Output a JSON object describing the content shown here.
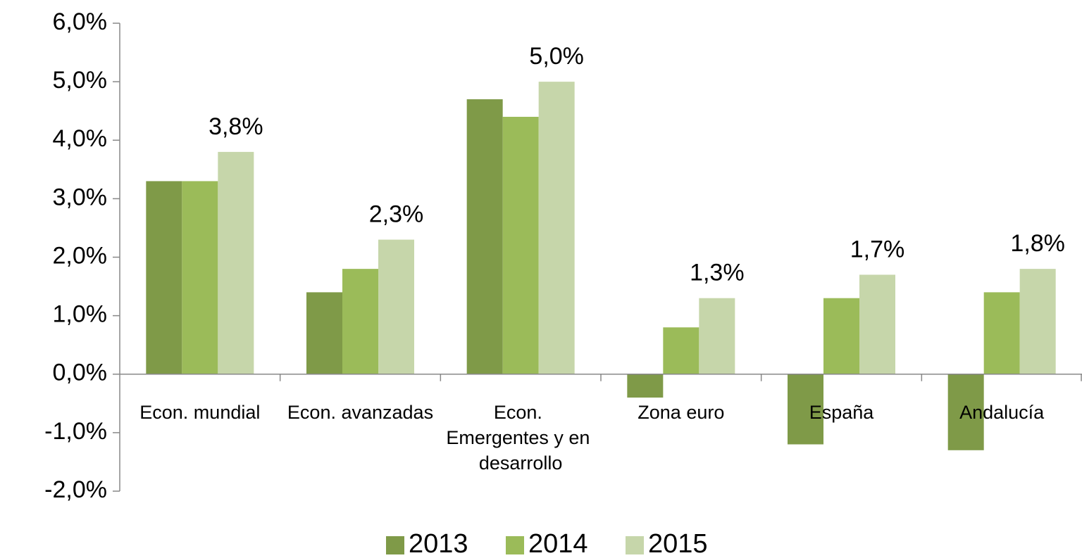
{
  "chart_data": {
    "type": "bar",
    "categories": [
      "Econ. mundial",
      "Econ. avanzadas",
      "Econ. Emergentes y en desarrollo",
      "Zona euro",
      "España",
      "Andalucía"
    ],
    "series": [
      {
        "name": "2013",
        "color": "#7f9a48",
        "values": [
          3.3,
          1.4,
          4.7,
          -0.4,
          -1.2,
          -1.3
        ]
      },
      {
        "name": "2014",
        "color": "#9bbb59",
        "values": [
          3.3,
          1.8,
          4.4,
          0.8,
          1.3,
          1.4
        ]
      },
      {
        "name": "2015",
        "color": "#c6d6aa",
        "values": [
          3.8,
          2.3,
          5.0,
          1.3,
          1.7,
          1.8
        ],
        "value_labels": [
          "3,8%",
          "2,3%",
          "5,0%",
          "1,3%",
          "1,7%",
          "1,8%"
        ]
      }
    ],
    "ylim": [
      -2,
      6
    ],
    "yticks": [
      {
        "value": -2,
        "label": "-2,0%"
      },
      {
        "value": -1,
        "label": "-1,0%"
      },
      {
        "value": 0,
        "label": "0,0%"
      },
      {
        "value": 1,
        "label": "1,0%"
      },
      {
        "value": 2,
        "label": "2,0%"
      },
      {
        "value": 3,
        "label": "3,0%"
      },
      {
        "value": 4,
        "label": "4,0%"
      },
      {
        "value": 5,
        "label": "5,0%"
      },
      {
        "value": 6,
        "label": "6,0%"
      }
    ],
    "grid": false,
    "legend": "bottom"
  }
}
